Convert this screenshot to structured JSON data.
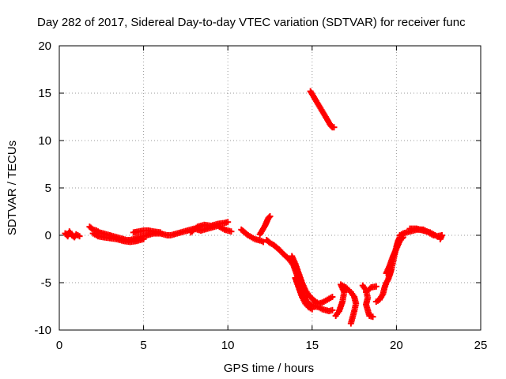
{
  "chart_data": {
    "type": "scatter",
    "title": "Day 282 of 2017, Sidereal Day-to-day VTEC variation (SDTVAR) for receiver func",
    "xlabel": "GPS time / hours",
    "ylabel": "SDTVAR / TECUs",
    "xlim": [
      0,
      25
    ],
    "ylim": [
      -10,
      20
    ],
    "xticks": [
      0,
      5,
      10,
      15,
      20,
      25
    ],
    "yticks": [
      -10,
      -5,
      0,
      5,
      10,
      15,
      20
    ],
    "grid": true,
    "marker": "plus",
    "color": "#ff0000",
    "series": [
      {
        "name": "SDTVAR",
        "segments": [
          [
            [
              0.35,
              0.2
            ],
            [
              0.5,
              -0.1
            ],
            [
              0.6,
              0.4
            ],
            [
              0.75,
              0.0
            ],
            [
              0.9,
              -0.2
            ],
            [
              1.0,
              0.1
            ],
            [
              1.2,
              -0.1
            ]
          ],
          [
            [
              1.8,
              0.9
            ],
            [
              2.0,
              0.6
            ],
            [
              2.2,
              0.5
            ],
            [
              2.4,
              0.3
            ],
            [
              2.6,
              0.2
            ],
            [
              2.8,
              0.1
            ],
            [
              3.0,
              0.0
            ],
            [
              3.2,
              -0.1
            ],
            [
              3.4,
              -0.2
            ],
            [
              3.6,
              -0.3
            ],
            [
              3.8,
              -0.4
            ],
            [
              4.0,
              -0.5
            ],
            [
              4.2,
              -0.5
            ],
            [
              4.4,
              -0.4
            ],
            [
              4.6,
              -0.3
            ],
            [
              4.8,
              -0.2
            ],
            [
              5.0,
              -0.1
            ],
            [
              5.2,
              0.0
            ],
            [
              5.4,
              0.1
            ],
            [
              5.6,
              0.2
            ],
            [
              5.8,
              0.2
            ],
            [
              6.0,
              0.2
            ],
            [
              6.2,
              0.1
            ],
            [
              6.4,
              0.0
            ],
            [
              6.6,
              0.0
            ],
            [
              6.8,
              0.1
            ],
            [
              7.0,
              0.2
            ],
            [
              7.2,
              0.3
            ],
            [
              7.4,
              0.4
            ],
            [
              7.6,
              0.5
            ],
            [
              7.8,
              0.6
            ],
            [
              8.0,
              0.7
            ],
            [
              8.2,
              0.6
            ],
            [
              8.4,
              0.5
            ],
            [
              8.6,
              0.6
            ],
            [
              8.8,
              0.7
            ],
            [
              9.0,
              0.8
            ],
            [
              9.2,
              0.9
            ],
            [
              9.4,
              1.0
            ],
            [
              9.6,
              0.8
            ],
            [
              9.8,
              0.6
            ],
            [
              10.0,
              0.5
            ],
            [
              10.2,
              0.4
            ]
          ],
          [
            [
              2.0,
              0.2
            ],
            [
              2.3,
              -0.1
            ],
            [
              2.6,
              -0.2
            ],
            [
              3.0,
              -0.3
            ],
            [
              3.4,
              -0.4
            ],
            [
              3.8,
              -0.6
            ],
            [
              4.2,
              -0.7
            ],
            [
              4.6,
              -0.6
            ],
            [
              5.0,
              -0.4
            ]
          ],
          [
            [
              4.4,
              0.3
            ],
            [
              4.7,
              0.4
            ],
            [
              5.0,
              0.5
            ],
            [
              5.3,
              0.5
            ],
            [
              5.6,
              0.4
            ],
            [
              6.0,
              0.3
            ]
          ],
          [
            [
              7.8,
              0.3
            ],
            [
              8.2,
              0.9
            ],
            [
              8.6,
              1.1
            ],
            [
              9.0,
              1.0
            ],
            [
              9.4,
              1.2
            ],
            [
              9.8,
              1.3
            ],
            [
              10.0,
              1.4
            ]
          ],
          [
            [
              10.8,
              0.6
            ],
            [
              11.0,
              0.3
            ],
            [
              11.2,
              0.0
            ],
            [
              11.4,
              -0.2
            ],
            [
              11.6,
              -0.4
            ],
            [
              11.8,
              -0.5
            ],
            [
              12.0,
              -0.6
            ],
            [
              12.1,
              -0.7
            ]
          ],
          [
            [
              11.9,
              0.1
            ],
            [
              12.0,
              0.4
            ],
            [
              12.1,
              0.7
            ],
            [
              12.2,
              1.0
            ],
            [
              12.3,
              1.4
            ],
            [
              12.4,
              1.8
            ],
            [
              12.5,
              2.0
            ]
          ],
          [
            [
              12.3,
              -0.5
            ],
            [
              12.5,
              -0.8
            ],
            [
              12.7,
              -1.0
            ],
            [
              12.9,
              -1.3
            ],
            [
              13.1,
              -1.6
            ],
            [
              13.3,
              -2.0
            ],
            [
              13.5,
              -2.3
            ],
            [
              13.7,
              -2.7
            ],
            [
              13.9,
              -3.2
            ],
            [
              14.0,
              -3.7
            ],
            [
              14.1,
              -4.2
            ],
            [
              14.2,
              -4.8
            ],
            [
              14.3,
              -5.3
            ],
            [
              14.4,
              -5.8
            ],
            [
              14.5,
              -6.3
            ],
            [
              14.6,
              -6.7
            ],
            [
              14.7,
              -7.0
            ],
            [
              14.8,
              -7.2
            ],
            [
              15.0,
              -7.4
            ],
            [
              15.2,
              -7.5
            ],
            [
              15.4,
              -7.6
            ],
            [
              15.6,
              -7.8
            ],
            [
              15.8,
              -7.9
            ],
            [
              16.0,
              -8.0
            ],
            [
              16.2,
              -7.9
            ]
          ],
          [
            [
              13.8,
              -2.2
            ],
            [
              14.0,
              -3.0
            ],
            [
              14.2,
              -4.0
            ],
            [
              14.4,
              -5.0
            ],
            [
              14.6,
              -5.8
            ],
            [
              14.8,
              -6.3
            ],
            [
              15.0,
              -6.7
            ],
            [
              15.2,
              -7.0
            ],
            [
              15.4,
              -7.2
            ],
            [
              15.6,
              -7.1
            ],
            [
              15.8,
              -6.9
            ],
            [
              16.0,
              -6.7
            ],
            [
              16.2,
              -6.5
            ]
          ],
          [
            [
              14.0,
              -4.5
            ],
            [
              14.2,
              -5.5
            ],
            [
              14.4,
              -6.5
            ],
            [
              14.6,
              -7.2
            ],
            [
              14.8,
              -7.6
            ],
            [
              15.0,
              -7.8
            ]
          ],
          [
            [
              14.9,
              15.2
            ],
            [
              15.0,
              14.9
            ],
            [
              15.1,
              14.6
            ],
            [
              15.2,
              14.3
            ],
            [
              15.3,
              14.0
            ],
            [
              15.4,
              13.7
            ],
            [
              15.5,
              13.4
            ],
            [
              15.6,
              13.1
            ],
            [
              15.7,
              12.8
            ],
            [
              15.8,
              12.5
            ],
            [
              15.9,
              12.2
            ],
            [
              16.0,
              11.9
            ],
            [
              16.1,
              11.6
            ],
            [
              16.2,
              11.4
            ],
            [
              16.3,
              11.4
            ]
          ],
          [
            [
              16.4,
              -8.5
            ],
            [
              16.6,
              -8.0
            ],
            [
              16.8,
              -7.0
            ],
            [
              16.9,
              -6.0
            ],
            [
              16.7,
              -5.2
            ],
            [
              17.0,
              -5.5
            ],
            [
              17.3,
              -6.0
            ],
            [
              17.5,
              -6.5
            ],
            [
              17.6,
              -7.2
            ],
            [
              17.5,
              -8.0
            ],
            [
              17.3,
              -9.3
            ]
          ],
          [
            [
              18.0,
              -5.3
            ],
            [
              18.2,
              -5.8
            ],
            [
              18.3,
              -6.6
            ],
            [
              18.2,
              -7.3
            ],
            [
              18.4,
              -8.5
            ],
            [
              18.6,
              -8.6
            ]
          ],
          [
            [
              18.2,
              -6.0
            ],
            [
              18.5,
              -5.5
            ],
            [
              18.8,
              -5.4
            ]
          ],
          [
            [
              18.8,
              -7.0
            ],
            [
              19.0,
              -6.8
            ],
            [
              19.2,
              -6.2
            ],
            [
              19.3,
              -5.5
            ],
            [
              19.4,
              -5.0
            ],
            [
              19.5,
              -4.7
            ],
            [
              19.6,
              -4.2
            ],
            [
              19.7,
              -3.6
            ],
            [
              19.8,
              -2.8
            ],
            [
              19.9,
              -2.0
            ],
            [
              20.0,
              -1.2
            ],
            [
              20.1,
              -0.6
            ],
            [
              20.2,
              -0.2
            ]
          ],
          [
            [
              19.4,
              -4.0
            ],
            [
              19.6,
              -3.2
            ],
            [
              19.8,
              -2.2
            ],
            [
              20.0,
              -1.4
            ],
            [
              20.2,
              -0.6
            ],
            [
              20.4,
              -0.2
            ]
          ],
          [
            [
              20.2,
              0.0
            ],
            [
              20.4,
              0.2
            ],
            [
              20.6,
              0.3
            ],
            [
              20.8,
              0.4
            ],
            [
              21.0,
              0.5
            ],
            [
              21.2,
              0.6
            ],
            [
              21.4,
              0.6
            ],
            [
              21.6,
              0.6
            ],
            [
              21.8,
              0.4
            ],
            [
              22.0,
              0.2
            ],
            [
              22.2,
              0.0
            ]
          ],
          [
            [
              20.8,
              0.7
            ],
            [
              21.2,
              0.7
            ],
            [
              21.6,
              0.5
            ],
            [
              22.0,
              0.3
            ],
            [
              22.4,
              -0.1
            ],
            [
              22.7,
              0.0
            ],
            [
              22.6,
              -0.4
            ]
          ]
        ]
      }
    ]
  }
}
